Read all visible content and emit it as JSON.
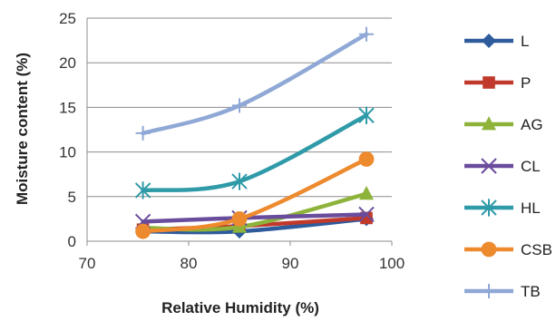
{
  "chart_data": {
    "type": "line",
    "xlabel": "Relative Humidity (%)",
    "ylabel": "Moisture content (%)",
    "xlim": [
      70,
      100
    ],
    "ylim": [
      0,
      25
    ],
    "xticks": [
      70,
      80,
      90,
      100
    ],
    "yticks": [
      0,
      5,
      10,
      15,
      20,
      25
    ],
    "grid": "horizontal",
    "legend_position": "right",
    "x": [
      75.5,
      85,
      97.5
    ],
    "series": [
      {
        "name": "L",
        "values": [
          1.1,
          1.1,
          2.5
        ],
        "color": "#2e5b9c",
        "marker": "diamond"
      },
      {
        "name": "P",
        "values": [
          1.3,
          1.7,
          2.6
        ],
        "color": "#c0392b",
        "marker": "square"
      },
      {
        "name": "AG",
        "values": [
          1.5,
          1.6,
          5.3
        ],
        "color": "#8db33a",
        "marker": "triangle"
      },
      {
        "name": "CL",
        "values": [
          2.2,
          2.6,
          3.0
        ],
        "color": "#6a4c9c",
        "marker": "x"
      },
      {
        "name": "HL",
        "values": [
          5.7,
          6.7,
          14.1
        ],
        "color": "#2f9aa8",
        "marker": "asterisk"
      },
      {
        "name": "CSB",
        "values": [
          1.1,
          2.5,
          9.2
        ],
        "color": "#ee8a2e",
        "marker": "circle"
      },
      {
        "name": "TB",
        "values": [
          12.1,
          15.2,
          23.2
        ],
        "color": "#8fa8d6",
        "marker": "plus"
      }
    ]
  }
}
